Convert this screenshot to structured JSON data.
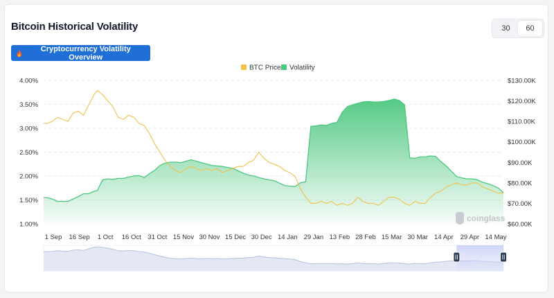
{
  "header": {
    "title": "Bitcoin Historical Volatility"
  },
  "period_toggle": {
    "options": [
      "30",
      "60"
    ],
    "selected": "60"
  },
  "overview_button": {
    "label": "Cryptocurrency Volatility Overview"
  },
  "watermark": {
    "text": "coinglass"
  },
  "colors": {
    "price": "#f0c14b",
    "volatility": "#4cc77e",
    "accent": "#1f6fd6"
  },
  "chart_data": {
    "type": "line",
    "legend": {
      "position": "top-center",
      "entries": [
        "BTC Price",
        "Volatility"
      ]
    },
    "x": [
      "2024-09-01",
      "2024-09-03",
      "2024-09-06",
      "2024-09-09",
      "2024-09-12",
      "2024-09-15",
      "2024-09-18",
      "2024-09-21",
      "2024-09-24",
      "2024-09-27",
      "2024-09-30",
      "2024-10-02",
      "2024-10-05",
      "2024-10-08",
      "2024-10-11",
      "2024-10-14",
      "2024-10-17",
      "2024-10-20",
      "2024-10-23",
      "2024-10-26",
      "2024-10-29",
      "2024-11-01",
      "2024-11-04",
      "2024-11-07",
      "2024-11-10",
      "2024-11-13",
      "2024-11-16",
      "2024-11-19",
      "2024-11-22",
      "2024-11-25",
      "2024-11-28",
      "2024-12-01",
      "2024-12-04",
      "2024-12-07",
      "2024-12-10",
      "2024-12-13",
      "2024-12-16",
      "2024-12-19",
      "2024-12-22",
      "2024-12-25",
      "2024-12-28",
      "2024-12-31",
      "2025-01-03",
      "2025-01-06",
      "2025-01-09",
      "2025-01-12",
      "2025-01-15",
      "2025-01-18",
      "2025-01-21",
      "2025-01-24",
      "2025-01-27",
      "2025-01-30",
      "2025-02-02",
      "2025-02-05",
      "2025-02-08",
      "2025-02-11",
      "2025-02-14",
      "2025-02-17",
      "2025-02-20",
      "2025-02-23",
      "2025-02-26",
      "2025-03-01",
      "2025-03-04",
      "2025-03-07",
      "2025-03-10",
      "2025-03-13",
      "2025-03-16",
      "2025-03-19",
      "2025-03-22",
      "2025-03-25",
      "2025-03-28",
      "2025-03-31",
      "2025-04-03",
      "2025-04-06",
      "2025-04-09",
      "2025-04-12",
      "2025-04-15",
      "2025-04-18",
      "2025-04-21",
      "2025-04-24",
      "2025-04-27",
      "2025-04-30",
      "2025-05-03",
      "2025-05-06",
      "2025-05-09",
      "2025-05-12",
      "2025-05-15",
      "2025-05-18",
      "2025-05-21",
      "2025-05-24"
    ],
    "x_ticks": [
      "1 Sep",
      "16 Sep",
      "1 Oct",
      "16 Oct",
      "31 Oct",
      "15 Nov",
      "30 Nov",
      "15 Dec",
      "30 Dec",
      "14 Jan",
      "29 Jan",
      "13 Feb",
      "28 Feb",
      "15 Mar",
      "30 Mar",
      "14 Apr",
      "29 Apr",
      "14 May"
    ],
    "x_tick_dates": [
      "2024-09-01",
      "2024-09-16",
      "2024-10-01",
      "2024-10-16",
      "2024-10-31",
      "2024-11-15",
      "2024-11-30",
      "2024-12-15",
      "2024-12-30",
      "2025-01-14",
      "2025-01-29",
      "2025-02-13",
      "2025-02-28",
      "2025-03-15",
      "2025-03-30",
      "2025-04-14",
      "2025-04-29",
      "2025-05-14"
    ],
    "y_left": {
      "ticks": [
        "1.00%",
        "1.50%",
        "2.00%",
        "2.50%",
        "3.00%",
        "3.50%",
        "4.00%"
      ],
      "range": [
        1.0,
        4.0
      ]
    },
    "y_right": {
      "ticks": [
        "$60.00K",
        "$70.00K",
        "$80.00K",
        "$90.00K",
        "$100.00K",
        "$110.00K",
        "$120.00K",
        "$130.00K"
      ],
      "range": [
        60,
        130
      ]
    },
    "series": [
      {
        "name": "Volatility",
        "axis": "left",
        "values": [
          1.55,
          1.55,
          1.52,
          1.47,
          1.47,
          1.47,
          1.52,
          1.57,
          1.63,
          1.63,
          1.68,
          1.7,
          1.92,
          1.94,
          1.93,
          1.95,
          1.95,
          1.98,
          2.0,
          2.01,
          1.97,
          2.05,
          2.12,
          2.22,
          2.27,
          2.29,
          2.29,
          2.28,
          2.31,
          2.34,
          2.31,
          2.28,
          2.25,
          2.22,
          2.21,
          2.2,
          2.18,
          2.16,
          2.11,
          2.06,
          2.02,
          2.0,
          1.97,
          1.94,
          1.92,
          1.9,
          1.85,
          1.8,
          1.79,
          1.78,
          1.86,
          1.88,
          3.04,
          3.05,
          3.07,
          3.06,
          3.1,
          3.12,
          3.33,
          3.45,
          3.49,
          3.52,
          3.55,
          3.56,
          3.55,
          3.55,
          3.56,
          3.58,
          3.61,
          3.58,
          3.49,
          2.38,
          2.37,
          2.4,
          2.4,
          2.42,
          2.41,
          2.3,
          2.21,
          2.1,
          1.99,
          1.96,
          1.94,
          1.94,
          1.92,
          1.87,
          1.84,
          1.8,
          1.75,
          1.65
        ]
      },
      {
        "name": "BTC Price",
        "axis": "right",
        "values": [
          109,
          109,
          110,
          112,
          111,
          110,
          114,
          115,
          113,
          118,
          123,
          125,
          123,
          120,
          117,
          112,
          111,
          113,
          112,
          109,
          108,
          104,
          99,
          95,
          91,
          88,
          86,
          85,
          87,
          88,
          87,
          86,
          87,
          86,
          87,
          85,
          86,
          87,
          88,
          88,
          90,
          91,
          95,
          92,
          90,
          89,
          88,
          86,
          85,
          83,
          77,
          73,
          70,
          70,
          71,
          70,
          71,
          69,
          70,
          69,
          70,
          73,
          71,
          70,
          70,
          69,
          71,
          73,
          73,
          72,
          70,
          69,
          71,
          70,
          70,
          73,
          75,
          76,
          78,
          79,
          80,
          79,
          79,
          80,
          80,
          78,
          77,
          76,
          75,
          75
        ]
      }
    ],
    "brush": {
      "selected_range": [
        "2025-04-27",
        "2025-05-24"
      ]
    }
  }
}
